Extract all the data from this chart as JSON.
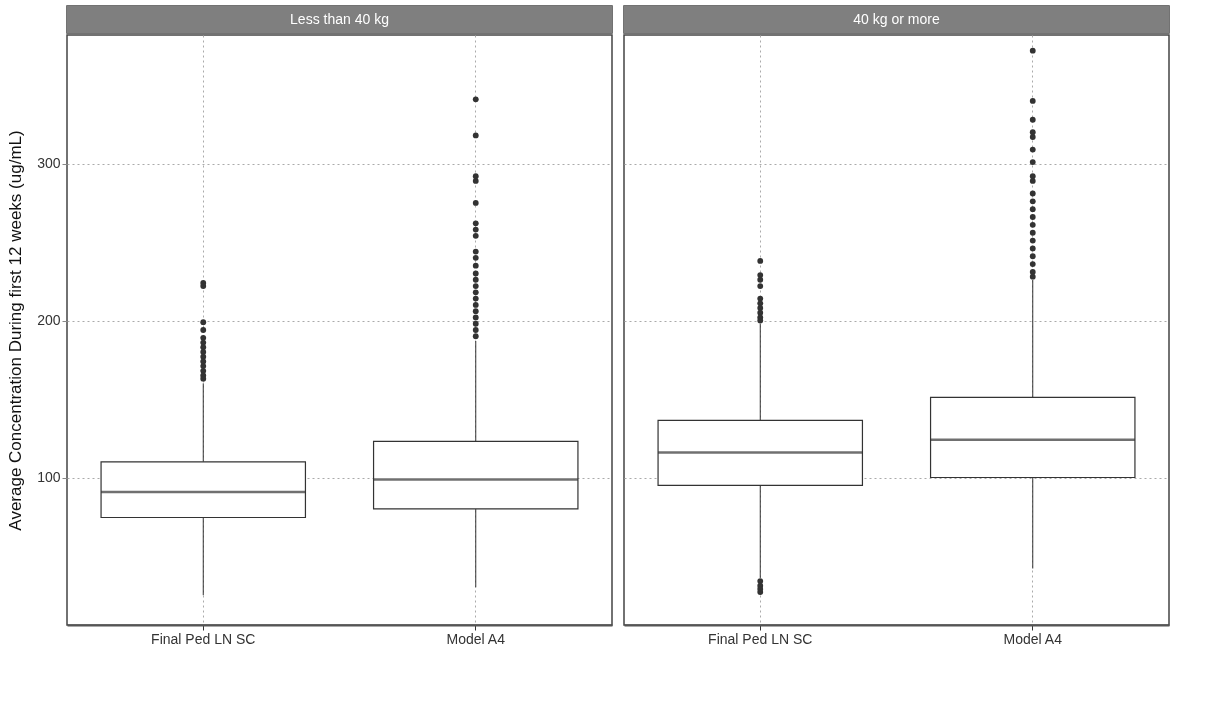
{
  "chart_data": [
    {
      "type": "box",
      "title": "Less than 40 kg",
      "ylabel": "Average Concentration During first 12 weeks (ug/mL)",
      "categories": [
        "Final Ped LN SC",
        "Model A4"
      ],
      "ylim": [
        6,
        382
      ],
      "yticks": [
        100,
        200,
        300
      ],
      "grid": true,
      "boxes": [
        {
          "low": 25,
          "q1": 74.5,
          "median": 90.7,
          "q3": 110,
          "high": 160,
          "outliers": [
            224,
            222,
            199,
            194,
            189,
            186,
            183,
            180,
            177,
            174,
            171,
            168,
            165,
            163
          ]
        },
        {
          "low": 30,
          "q1": 80,
          "median": 98.8,
          "q3": 123,
          "high": 187,
          "outliers": [
            341,
            318,
            292,
            289,
            275,
            262,
            258,
            254,
            244,
            240,
            235,
            230,
            226,
            222,
            218,
            214,
            210,
            206,
            202,
            198,
            194,
            190
          ]
        }
      ]
    },
    {
      "type": "box",
      "title": "40 kg or more",
      "categories": [
        "Final Ped LN SC",
        "Model A4"
      ],
      "ylim": [
        6,
        382
      ],
      "yticks": [
        100,
        200,
        300
      ],
      "grid": true,
      "tick_labels": "x",
      "boxes": [
        {
          "low": 36,
          "q1": 95,
          "median": 116,
          "q3": 136.4,
          "high": 198,
          "outliers": [
            238,
            229,
            226,
            222,
            214,
            211,
            208,
            205,
            202,
            200,
            34,
            31,
            29,
            27
          ]
        },
        {
          "low": 42,
          "q1": 100,
          "median": 124,
          "q3": 151,
          "high": 226,
          "outliers": [
            372,
            340,
            328,
            320,
            317,
            309,
            301,
            292,
            289,
            281,
            276,
            271,
            266,
            261,
            256,
            251,
            246,
            241,
            236,
            231,
            228
          ]
        }
      ]
    }
  ]
}
